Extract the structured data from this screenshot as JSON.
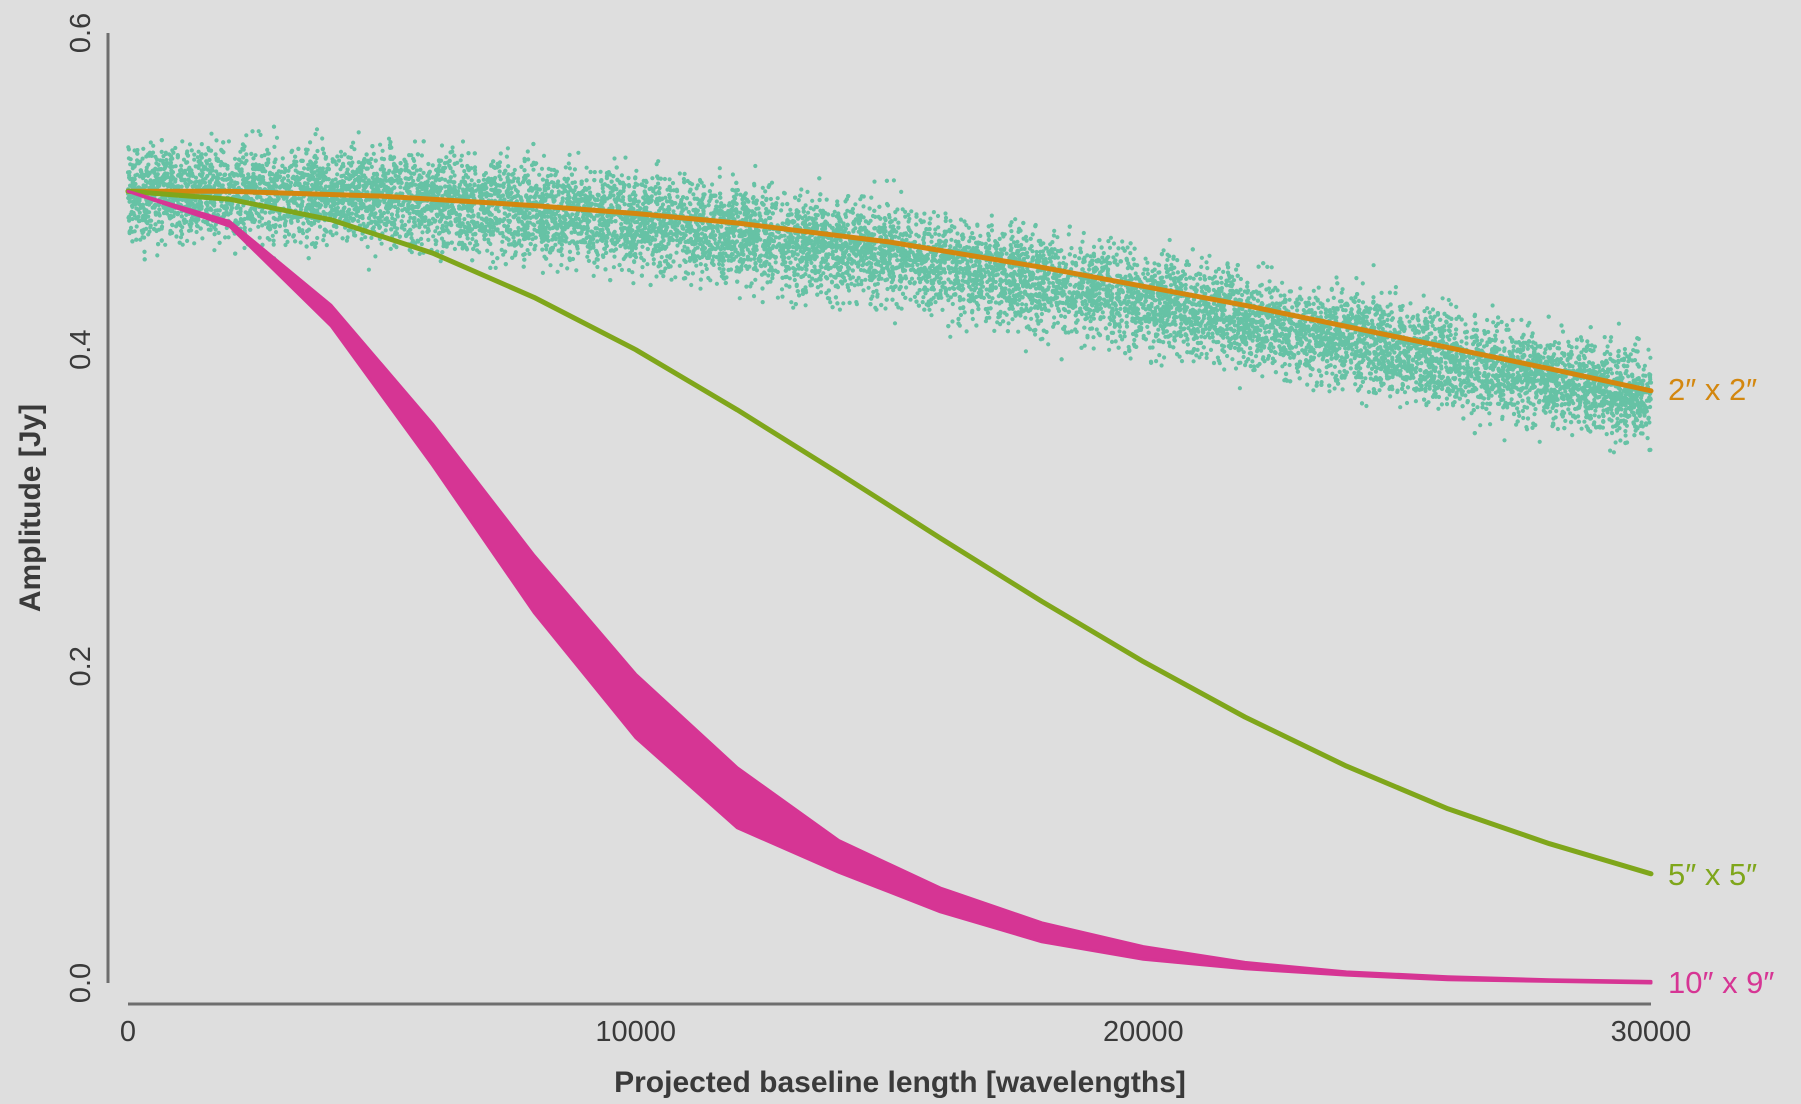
{
  "chart_data": {
    "type": "scatter",
    "title": "",
    "xlabel": "Projected baseline length [wavelengths]",
    "ylabel": "Amplitude [Jy]",
    "xlim": [
      0,
      30000
    ],
    "ylim": [
      0,
      0.6
    ],
    "xticks": [
      0,
      10000,
      20000,
      30000
    ],
    "yticks": [
      0.0,
      0.2,
      0.4,
      0.6
    ],
    "xtick_labels": [
      "0",
      "10000",
      "20000",
      "30000"
    ],
    "ytick_labels": [
      "0.0",
      "0.2",
      "0.4",
      "0.6"
    ],
    "grid": false,
    "legend": "direct labels at right end of lines",
    "scatter": {
      "color": "#66c2a5",
      "center": [
        {
          "x": 0,
          "y": 0.5
        },
        {
          "x": 5000,
          "y": 0.497
        },
        {
          "x": 10000,
          "y": 0.482
        },
        {
          "x": 15000,
          "y": 0.46
        },
        {
          "x": 20000,
          "y": 0.432
        },
        {
          "x": 25000,
          "y": 0.4
        },
        {
          "x": 30000,
          "y": 0.37
        }
      ],
      "spread": 0.05
    },
    "series": [
      {
        "name": "2″ x 2″",
        "color": "#d3870f",
        "x": [
          0,
          2000,
          5000,
          8000,
          10000,
          12000,
          15000,
          18000,
          20000,
          22000,
          25000,
          28000,
          30000
        ],
        "y": [
          0.5,
          0.5,
          0.497,
          0.491,
          0.486,
          0.48,
          0.468,
          0.452,
          0.44,
          0.428,
          0.408,
          0.388,
          0.374
        ]
      },
      {
        "name": "5″ x 5″",
        "color": "#7fa61b",
        "x": [
          0,
          2000,
          4000,
          6000,
          8000,
          10000,
          12000,
          14000,
          16000,
          18000,
          20000,
          22000,
          24000,
          26000,
          28000,
          30000
        ],
        "y": [
          0.5,
          0.495,
          0.482,
          0.461,
          0.433,
          0.4,
          0.362,
          0.322,
          0.281,
          0.241,
          0.203,
          0.168,
          0.137,
          0.11,
          0.088,
          0.069
        ]
      },
      {
        "name": "10″ x 9″",
        "color": "#d63594",
        "x": [
          0,
          2000,
          4000,
          6000,
          8000,
          10000,
          12000,
          14000,
          16000,
          18000,
          20000,
          22000,
          24000,
          26000,
          28000,
          30000
        ],
        "y_upper": [
          0.5,
          0.481,
          0.428,
          0.353,
          0.27,
          0.195,
          0.136,
          0.09,
          0.06,
          0.038,
          0.023,
          0.013,
          0.007,
          0.004,
          0.002,
          0.001
        ],
        "y_lower": [
          0.5,
          0.478,
          0.415,
          0.327,
          0.234,
          0.155,
          0.098,
          0.07,
          0.045,
          0.026,
          0.015,
          0.009,
          0.005,
          0.002,
          0.001,
          0.0
        ]
      }
    ]
  }
}
